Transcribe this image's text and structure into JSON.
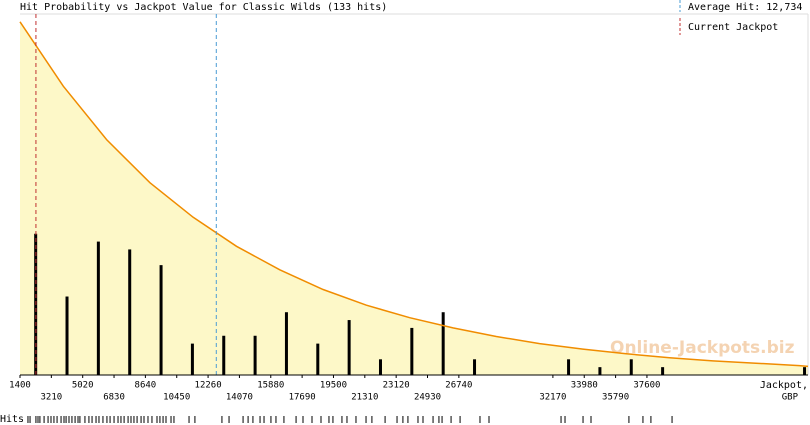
{
  "chart_data": {
    "type": "histogram",
    "title": "Hit Probability vs Jackpot Value for Classic Wilds (133 hits)",
    "x_label": [
      "Jackpot,",
      "GBP"
    ],
    "rug_label": "Hits",
    "watermark": "Online-Jackpots.biz",
    "xlim": [
      1400,
      46900
    ],
    "ylim": [
      0,
      46
    ],
    "xticks": [
      1400,
      3210,
      5020,
      6830,
      8640,
      10450,
      12260,
      14070,
      15880,
      17690,
      19500,
      21310,
      23120,
      24930,
      26740,
      32170,
      33980,
      35790,
      37600
    ],
    "bars": {
      "color": "#000000",
      "x": [
        2305,
        4115,
        5925,
        7735,
        9545,
        11355,
        13165,
        14975,
        16785,
        18595,
        20405,
        22215,
        24025,
        25835,
        27645,
        33075,
        34885,
        36695,
        38505,
        46700
      ],
      "values": [
        18,
        10,
        17,
        16,
        14,
        4,
        5,
        5,
        8,
        4,
        7,
        2,
        6,
        8,
        2,
        2,
        1,
        2,
        1,
        1
      ]
    },
    "curve": {
      "color": "#f08c00",
      "fill": "#fdf8c8",
      "x": [
        1400,
        3900,
        6400,
        8900,
        11400,
        13900,
        16400,
        18900,
        21400,
        23900,
        26400,
        28900,
        31400,
        33900,
        36400,
        38900,
        41400,
        43900,
        46400,
        46900
      ],
      "values": [
        45,
        36.8,
        30.0,
        24.5,
        20.1,
        16.4,
        13.4,
        10.9,
        8.9,
        7.3,
        6.0,
        4.9,
        4.0,
        3.3,
        2.7,
        2.2,
        1.8,
        1.5,
        1.2,
        1.1
      ]
    },
    "average": {
      "value": 12734,
      "label": "Average Hit: 12,734",
      "color": "#4a9cd4"
    },
    "current": {
      "value": 2320,
      "label": "Current Jackpot",
      "color": "#c03030"
    },
    "hits": [
      1860,
      1980,
      2320,
      2440,
      2550,
      2790,
      3020,
      3190,
      3360,
      3540,
      3770,
      3940,
      4060,
      4230,
      4400,
      4580,
      4750,
      4860,
      5150,
      5380,
      5560,
      5790,
      5960,
      6190,
      6420,
      6600,
      6830,
      7060,
      7230,
      7410,
      7640,
      7810,
      7980,
      8160,
      8390,
      8560,
      8790,
      9020,
      9310,
      9480,
      9660,
      9830,
      10120,
      10290,
      11160,
      11500,
      13060,
      13470,
      14280,
      14570,
      14850,
      15260,
      15490,
      15890,
      16180,
      16640,
      17340,
      17740,
      18260,
      18780,
      19240,
      19470,
      19990,
      20280,
      20800,
      21380,
      21720,
      22480,
      23170,
      23510,
      23800,
      24380,
      24670,
      25250,
      25590,
      25770,
      26290,
      26810,
      27960,
      28480,
      32640,
      32870,
      33910,
      34370,
      36560,
      37370,
      37830,
      39050
    ]
  }
}
